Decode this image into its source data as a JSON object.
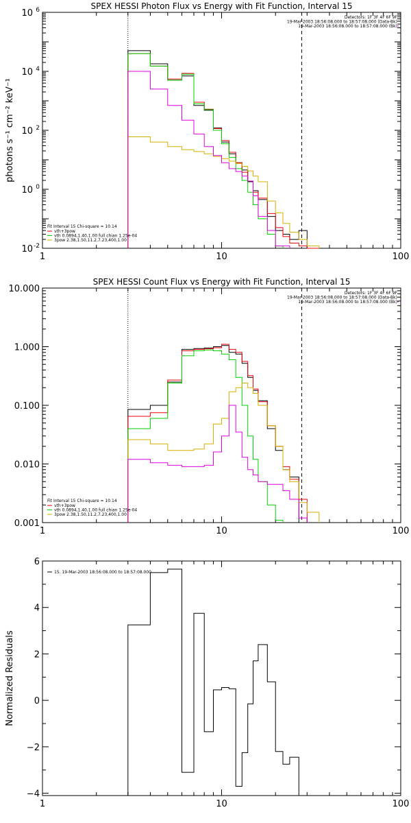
{
  "chart_data": [
    {
      "type": "line",
      "title": "SPEX HESSI Photon Flux vs Energy with Fit Function, Interval 15",
      "ylabel": "photons s⁻¹ cm⁻² keV⁻¹",
      "xscale": "log",
      "yscale": "log",
      "xlim": [
        1,
        100
      ],
      "ylim": [
        0.01,
        1000000
      ],
      "x_ticks": [
        {
          "v": 1,
          "label": "1"
        },
        {
          "v": 10,
          "label": "10"
        },
        {
          "v": 100,
          "label": "100"
        }
      ],
      "y_ticks": [
        {
          "v": 0.01,
          "base": "10",
          "exp": "-2"
        },
        {
          "v": 1,
          "base": "10",
          "exp": "0"
        },
        {
          "v": 100,
          "base": "10",
          "exp": "2"
        },
        {
          "v": 10000,
          "base": "10",
          "exp": "4"
        },
        {
          "v": 1000000,
          "base": "10",
          "exp": "6"
        }
      ],
      "vlines": [
        {
          "x": 3,
          "style": "dotted"
        },
        {
          "x": 28,
          "style": "dashed"
        }
      ],
      "header_right": [
        "Detectors: 1F 3F 4F 6F 9F",
        "19-Mar-2003 18:56:08.000 to 18:57:08.000 (Data-Bk)",
        "19-Mar-2003 18:56:08.000 to 18:57:08.000 (Bk)"
      ],
      "legend_header": "Fit Interval 15   Chi-square = 10.14",
      "legend": [
        {
          "label": "vth+3pow",
          "color": "#e8000b"
        },
        {
          "label": "vth 0.0894,1.40,1.00  full chian 1.25e-04",
          "color": "#00d100"
        },
        {
          "label": "3pow 2.38,1.50,11.2,7.23,400,1.00",
          "color": "#d4b000"
        }
      ],
      "bin_edges": [
        3,
        4,
        5,
        6,
        7,
        8,
        9,
        10,
        11,
        12,
        13,
        14,
        15,
        16,
        18,
        20,
        22,
        24,
        27,
        30,
        35,
        40,
        50
      ],
      "series": [
        {
          "color": "#000000",
          "values": [
            50000,
            18000,
            5000,
            7000,
            700,
            480,
            120,
            40,
            16,
            8,
            4.5,
            1.8,
            0.9,
            0.45,
            0.12,
            0.04,
            0.03,
            0.02,
            0.04,
            0.01
          ]
        },
        {
          "color": "#e8000b",
          "values": [
            40000,
            15000,
            5500,
            8500,
            900,
            520,
            115,
            45,
            18,
            8,
            3.8,
            1.9,
            0.8,
            0.5,
            0.15,
            0.05,
            0.025,
            0.015,
            0.012,
            0.008
          ]
        },
        {
          "color": "#00d100",
          "values": [
            40000,
            15000,
            5000,
            8000,
            800,
            500,
            100,
            35,
            12,
            5,
            2,
            0.8,
            0.3,
            0.1,
            0.03,
            0.012
          ]
        },
        {
          "color": "#d4b000",
          "values": [
            60,
            40,
            28,
            22,
            19,
            16,
            13,
            11,
            9,
            7.5,
            6,
            4.2,
            2.8,
            1.8,
            0.4,
            0.16,
            0.07,
            0.035,
            0.02,
            0.012
          ]
        },
        {
          "color": "#e000e0",
          "values": [
            10000,
            2500,
            700,
            220,
            75,
            28,
            14,
            8,
            5,
            4,
            2.8,
            1.9,
            0.6,
            0.12,
            0.04,
            0.012,
            0.012
          ]
        }
      ]
    },
    {
      "type": "line",
      "title": "SPEX HESSI Count Flux vs Energy with Fit Function, Interval 15",
      "xscale": "log",
      "yscale": "log",
      "xlim": [
        1,
        100
      ],
      "ylim": [
        0.001,
        10
      ],
      "x_ticks": [
        {
          "v": 1,
          "label": "1"
        },
        {
          "v": 10,
          "label": "10"
        },
        {
          "v": 100,
          "label": "100"
        }
      ],
      "y_ticks": [
        {
          "v": 0.001,
          "label": "0.001"
        },
        {
          "v": 0.01,
          "label": "0.010"
        },
        {
          "v": 0.1,
          "label": "0.100"
        },
        {
          "v": 1,
          "label": "1.000"
        },
        {
          "v": 10,
          "label": "10.000"
        }
      ],
      "vlines": [
        {
          "x": 3,
          "style": "dotted"
        },
        {
          "x": 28,
          "style": "dashed"
        }
      ],
      "header_right": [
        "Detectors: 1F 3F 4F 6F 9F",
        "19-Mar-2003 18:56:08.000 to 18:57:08.000 (Data-Bk)",
        "19-Mar-2003 18:56:08.000 to 18:57:08.000 (Bk)"
      ],
      "legend_header": "Fit Interval 15   Chi-square = 10.14",
      "legend": [
        {
          "label": "vth+3pow",
          "color": "#e8000b"
        },
        {
          "label": "vth 0.0894,1.40,1.00  full chian 1.25e-04",
          "color": "#00d100"
        },
        {
          "label": "3pow 2.38,1.50,11.2,7.23,400,1.00",
          "color": "#d4b000"
        }
      ],
      "bin_edges": [
        3,
        4,
        5,
        6,
        7,
        8,
        9,
        10,
        11,
        12,
        13,
        14,
        15,
        16,
        18,
        20,
        22,
        24,
        27,
        30,
        35
      ],
      "series": [
        {
          "color": "#000000",
          "values": [
            0.085,
            0.1,
            0.25,
            0.9,
            0.93,
            0.95,
            1.0,
            1.05,
            0.8,
            0.75,
            0.52,
            0.3,
            0.18,
            0.12,
            0.04,
            0.017,
            0.008,
            0.006
          ]
        },
        {
          "color": "#e8000b",
          "values": [
            0.065,
            0.075,
            0.27,
            0.85,
            0.9,
            0.92,
            0.96,
            1.1,
            0.9,
            0.8,
            0.56,
            0.32,
            0.19,
            0.115,
            0.045,
            0.02,
            0.009,
            0.0055,
            0.0025
          ]
        },
        {
          "color": "#00d100",
          "values": [
            0.04,
            0.06,
            0.24,
            0.7,
            0.85,
            0.88,
            0.85,
            0.75,
            0.6,
            0.3,
            0.1,
            0.03,
            0.012,
            0.005,
            0.002,
            0.0011
          ]
        },
        {
          "color": "#d4b000",
          "values": [
            0.026,
            0.022,
            0.017,
            0.017,
            0.018,
            0.022,
            0.048,
            0.06,
            0.17,
            0.2,
            0.24,
            0.2,
            0.16,
            0.1,
            0.045,
            0.02,
            0.008,
            0.005,
            0.0022,
            0.0015
          ]
        },
        {
          "color": "#e000e0",
          "values": [
            0.012,
            0.0105,
            0.0095,
            0.009,
            0.009,
            0.0095,
            0.016,
            0.03,
            0.1,
            0.035,
            0.013,
            0.008,
            0.0065,
            0.005,
            0.0045,
            0.0045,
            0.0035,
            0.0025,
            0.0012
          ]
        }
      ]
    },
    {
      "type": "line",
      "title": "",
      "ylabel": "Normalized Residuals",
      "xscale": "log",
      "yscale": "linear",
      "xlim": [
        1,
        100
      ],
      "ylim": [
        -4.1,
        6
      ],
      "x_ticks": [
        {
          "v": 1,
          "label": "1"
        },
        {
          "v": 10,
          "label": "10"
        },
        {
          "v": 100,
          "label": "100"
        }
      ],
      "y_ticks": [
        {
          "v": -4,
          "label": "−4"
        },
        {
          "v": -2,
          "label": "−2"
        },
        {
          "v": 0,
          "label": "0"
        },
        {
          "v": 2,
          "label": "2"
        },
        {
          "v": 4,
          "label": "4"
        },
        {
          "v": 6,
          "label": "6"
        }
      ],
      "legend": [
        {
          "label": "15. 19-Mar-2003 18:56:08.000 to 18:57:08.000",
          "color": "#000000"
        }
      ],
      "bin_edges": [
        3,
        4,
        5,
        6,
        7,
        8,
        9,
        10,
        11,
        12,
        13,
        14,
        15,
        16,
        18,
        20,
        22,
        24,
        27
      ],
      "series": [
        {
          "color": "#000000",
          "values": [
            3.25,
            5.5,
            5.65,
            -3.1,
            3.75,
            -1.35,
            0.45,
            0.55,
            0.5,
            -3.7,
            -2.25,
            -0.15,
            1.7,
            2.4,
            0.8,
            -2.2,
            -2.75,
            -2.45
          ]
        }
      ]
    }
  ]
}
